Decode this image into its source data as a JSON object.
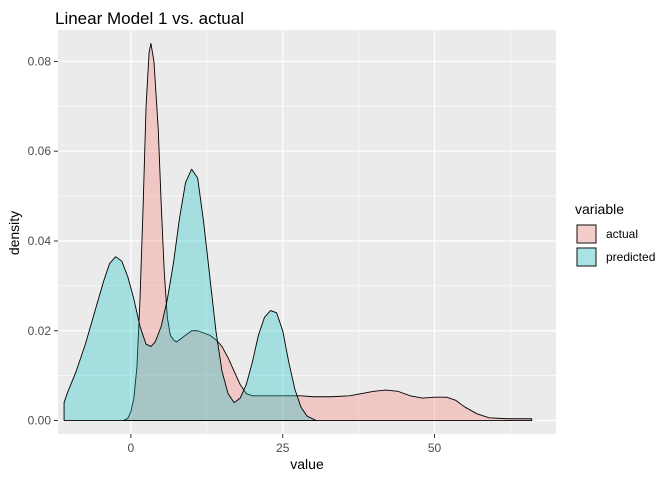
{
  "chart_data": {
    "type": "area",
    "title": "Linear Model 1 vs. actual",
    "xlabel": "value",
    "ylabel": "density",
    "xlim": [
      -12,
      70
    ],
    "ylim": [
      -0.003,
      0.087
    ],
    "x_ticks": [
      0,
      25,
      50
    ],
    "y_ticks": [
      0.0,
      0.02,
      0.04,
      0.06,
      0.08
    ],
    "x_tick_labels": [
      "0",
      "25",
      "50"
    ],
    "y_tick_labels": [
      "0.00",
      "0.02",
      "0.04",
      "0.06",
      "0.08"
    ],
    "grid": true,
    "legend": {
      "title": "variable",
      "position": "right"
    },
    "series": [
      {
        "name": "actual",
        "color": "#F8766D",
        "points": [
          [
            -1.2,
            0.0
          ],
          [
            -0.5,
            0.0005
          ],
          [
            0.0,
            0.002
          ],
          [
            0.5,
            0.005
          ],
          [
            1.0,
            0.012
          ],
          [
            1.5,
            0.027
          ],
          [
            2.0,
            0.047
          ],
          [
            2.5,
            0.07
          ],
          [
            3.0,
            0.082
          ],
          [
            3.3,
            0.084
          ],
          [
            3.8,
            0.08
          ],
          [
            4.5,
            0.065
          ],
          [
            5.0,
            0.048
          ],
          [
            5.5,
            0.033
          ],
          [
            6.0,
            0.023
          ],
          [
            6.5,
            0.019
          ],
          [
            7.0,
            0.018
          ],
          [
            7.5,
            0.0175
          ],
          [
            8.0,
            0.018
          ],
          [
            9.0,
            0.019
          ],
          [
            10.0,
            0.02
          ],
          [
            11.0,
            0.02
          ],
          [
            12.0,
            0.0195
          ],
          [
            13.0,
            0.019
          ],
          [
            14.0,
            0.018
          ],
          [
            15.0,
            0.0165
          ],
          [
            16.0,
            0.014
          ],
          [
            17.0,
            0.011
          ],
          [
            18.0,
            0.008
          ],
          [
            19.0,
            0.006
          ],
          [
            20.0,
            0.0055
          ],
          [
            22.0,
            0.0055
          ],
          [
            24.0,
            0.0055
          ],
          [
            26.0,
            0.0055
          ],
          [
            28.0,
            0.0055
          ],
          [
            30.0,
            0.0053
          ],
          [
            33.0,
            0.0053
          ],
          [
            36.0,
            0.0055
          ],
          [
            38.0,
            0.006
          ],
          [
            40.0,
            0.0065
          ],
          [
            42.0,
            0.0068
          ],
          [
            44.0,
            0.0065
          ],
          [
            46.0,
            0.0055
          ],
          [
            48.0,
            0.005
          ],
          [
            50.0,
            0.0052
          ],
          [
            52.0,
            0.0052
          ],
          [
            53.5,
            0.0045
          ],
          [
            55.0,
            0.003
          ],
          [
            57.0,
            0.0015
          ],
          [
            59.0,
            0.0006
          ],
          [
            62.0,
            0.0004
          ],
          [
            66.0,
            0.0004
          ]
        ]
      },
      {
        "name": "predicted",
        "color": "#00BFC4",
        "points": [
          [
            -11.0,
            0.0
          ],
          [
            -11.0,
            0.004
          ],
          [
            -10.5,
            0.006
          ],
          [
            -9.0,
            0.011
          ],
          [
            -7.5,
            0.017
          ],
          [
            -6.0,
            0.024
          ],
          [
            -4.5,
            0.031
          ],
          [
            -3.5,
            0.035
          ],
          [
            -2.5,
            0.0365
          ],
          [
            -1.5,
            0.0355
          ],
          [
            -0.5,
            0.032
          ],
          [
            0.5,
            0.027
          ],
          [
            1.5,
            0.021
          ],
          [
            2.5,
            0.017
          ],
          [
            3.3,
            0.0165
          ],
          [
            4.0,
            0.0175
          ],
          [
            5.0,
            0.021
          ],
          [
            6.0,
            0.027
          ],
          [
            7.0,
            0.035
          ],
          [
            8.0,
            0.045
          ],
          [
            9.0,
            0.053
          ],
          [
            10.0,
            0.056
          ],
          [
            11.0,
            0.054
          ],
          [
            12.0,
            0.044
          ],
          [
            13.0,
            0.032
          ],
          [
            14.0,
            0.02
          ],
          [
            15.0,
            0.011
          ],
          [
            16.0,
            0.006
          ],
          [
            17.0,
            0.004
          ],
          [
            18.0,
            0.005
          ],
          [
            19.0,
            0.008
          ],
          [
            20.0,
            0.013
          ],
          [
            21.0,
            0.019
          ],
          [
            22.0,
            0.023
          ],
          [
            23.0,
            0.0245
          ],
          [
            24.0,
            0.024
          ],
          [
            25.0,
            0.02
          ],
          [
            26.0,
            0.013
          ],
          [
            27.0,
            0.007
          ],
          [
            28.0,
            0.003
          ],
          [
            29.0,
            0.001
          ],
          [
            30.5,
            0.0
          ]
        ]
      }
    ]
  }
}
